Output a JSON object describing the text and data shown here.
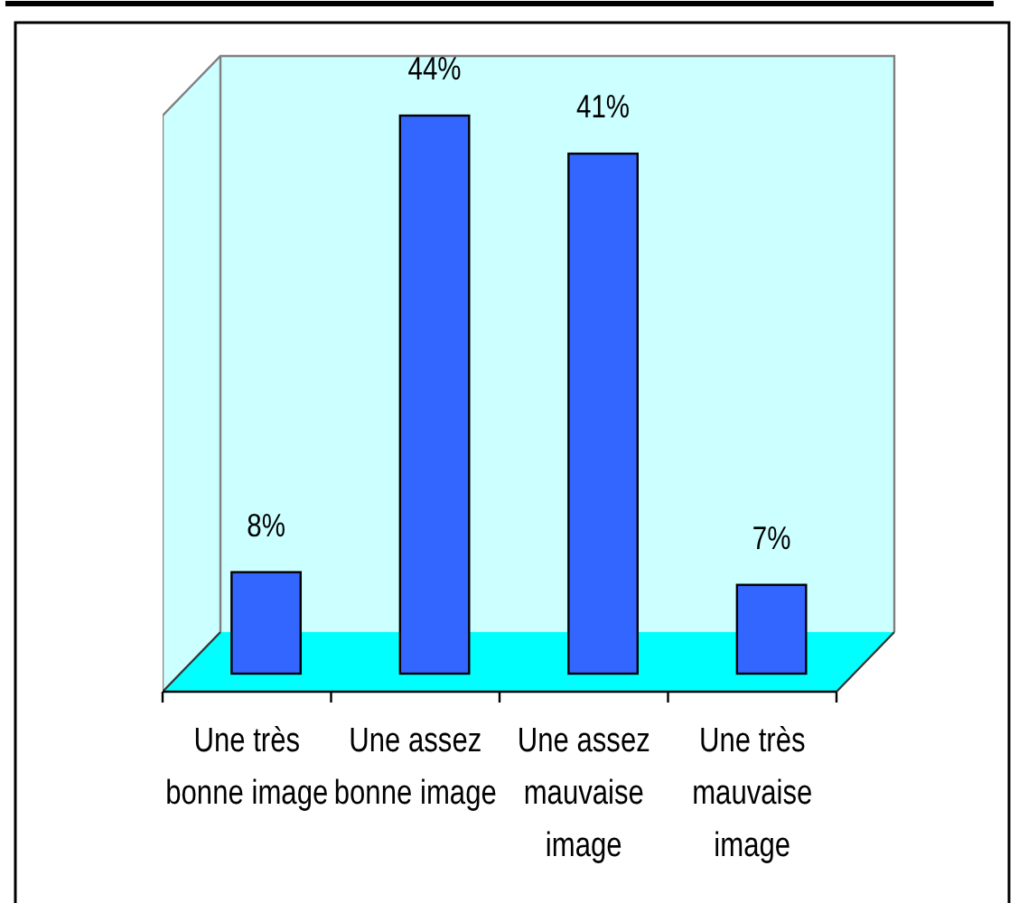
{
  "chart_data": {
    "type": "bar",
    "categories": [
      "Une très bonne image",
      "Une assez bonne image",
      "Une assez mauvaise image",
      "Une très mauvaise image"
    ],
    "values": [
      8,
      44,
      41,
      7
    ],
    "value_labels": [
      "8%",
      "44%",
      "41%",
      "7%"
    ],
    "color": "#3366ff"
  }
}
